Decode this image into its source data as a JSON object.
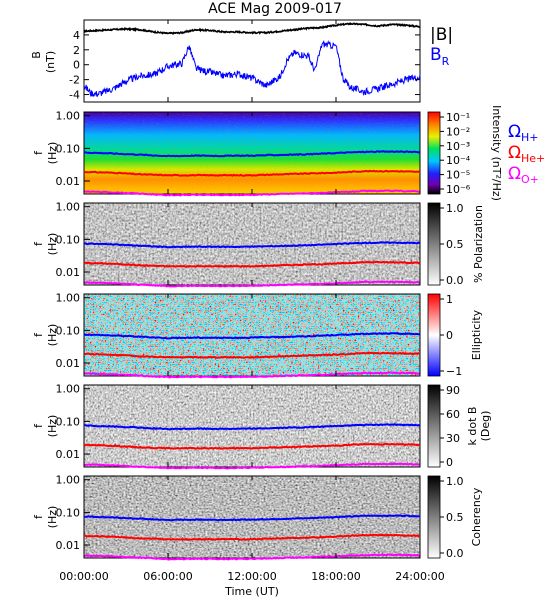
{
  "title": "ACE Mag 2009-017",
  "chart_data": [
    {
      "type": "line",
      "panel": "magnetic-field",
      "ylabel_line1": "B",
      "ylabel_line2": "(nT)",
      "ylim": [
        -5,
        6
      ],
      "yticks": [
        4,
        2,
        0,
        -2,
        -4
      ],
      "xlim": [
        0,
        24
      ],
      "series": [
        {
          "name": "|B|",
          "color": "#000000",
          "x": [
            0,
            1,
            2,
            3,
            4,
            5,
            6,
            7,
            8,
            9,
            10,
            11,
            12,
            13,
            14,
            15,
            16,
            17,
            18,
            19,
            20,
            21,
            22,
            23,
            24
          ],
          "y": [
            4.5,
            4.6,
            4.7,
            4.8,
            4.7,
            4.4,
            4.2,
            4.3,
            4.7,
            4.6,
            4.4,
            4.4,
            4.3,
            4.3,
            4.5,
            4.7,
            4.9,
            5.0,
            5.3,
            5.5,
            5.4,
            5.2,
            5.4,
            5.3,
            5.1
          ]
        },
        {
          "name": "B_R",
          "color": "#0000ff",
          "x": [
            0,
            0.5,
            1,
            2,
            3,
            4,
            5,
            6,
            7,
            7.5,
            8,
            8.5,
            9,
            10,
            11,
            12,
            13,
            14,
            14.5,
            15,
            16,
            16.5,
            17,
            18,
            18.5,
            19,
            20,
            21,
            22,
            23,
            24
          ],
          "y": [
            -2.8,
            -3.8,
            -3.9,
            -3.3,
            -2.2,
            -1.5,
            -1.3,
            -0.2,
            0.2,
            2.5,
            -0.5,
            -0.8,
            -1.0,
            -1.5,
            -1.2,
            -1.8,
            -2.8,
            -1.6,
            0.6,
            1.6,
            1.2,
            -0.8,
            2.8,
            2.5,
            -1.8,
            -3.0,
            -3.6,
            -3.2,
            -2.6,
            -2.0,
            -1.6
          ]
        }
      ],
      "legend": [
        {
          "label": "|B|",
          "color": "#000000"
        },
        {
          "label": "B",
          "sub": "R",
          "color": "#0000ff"
        }
      ]
    },
    {
      "type": "heatmap",
      "panel": "intensity",
      "colormap": "rainbow",
      "colorbar_label": "Intensity (nT²/Hz)",
      "colorbar_ticks": [
        "10⁻¹",
        "10⁻²",
        "10⁻³",
        "10⁻⁴",
        "10⁻⁵",
        "10⁻⁶"
      ]
    },
    {
      "type": "heatmap",
      "panel": "polarization",
      "colormap": "grayscale",
      "colorbar_label": "% Polarization",
      "colorbar_ticks": [
        "1.0",
        "0.5",
        "0.0"
      ]
    },
    {
      "type": "heatmap",
      "panel": "ellipticity",
      "colormap": "blue-white-red",
      "colorbar_label": "Ellipticity",
      "colorbar_ticks": [
        "1",
        "0",
        "−1"
      ]
    },
    {
      "type": "heatmap",
      "panel": "k-dot-b",
      "colormap": "grayscale",
      "colorbar_label_line1": "k dot B",
      "colorbar_label_line2": "(Deg)",
      "colorbar_ticks": [
        "90",
        "60",
        "30",
        "0"
      ]
    },
    {
      "type": "heatmap",
      "panel": "coherency",
      "colormap": "grayscale",
      "colorbar_label": "Coherency",
      "colorbar_ticks": [
        "1.0",
        "0.5",
        "0.0"
      ]
    }
  ],
  "spectrogram_axes": {
    "ylabel_line1": "f",
    "ylabel_line2": "(Hz)",
    "yscale": "log",
    "ylim": [
      0.004,
      1.3
    ],
    "yticks": [
      {
        "value": 1.0,
        "label": "1.00"
      },
      {
        "value": 0.1,
        "label": "0.10"
      },
      {
        "value": 0.01,
        "label": "0.01"
      }
    ]
  },
  "gyro_lines": {
    "x": [
      0,
      2,
      4,
      6,
      8,
      10,
      12,
      14,
      16,
      18,
      20,
      22,
      24
    ],
    "H+": {
      "color": "#0000ff",
      "f": [
        0.075,
        0.07,
        0.064,
        0.058,
        0.06,
        0.059,
        0.06,
        0.063,
        0.066,
        0.072,
        0.078,
        0.08,
        0.077
      ]
    },
    "He+": {
      "color": "#ff0000",
      "f": [
        0.019,
        0.018,
        0.016,
        0.015,
        0.015,
        0.015,
        0.015,
        0.016,
        0.017,
        0.018,
        0.02,
        0.02,
        0.019
      ]
    },
    "O+": {
      "color": "#ff00ff",
      "f": [
        0.0048,
        0.0045,
        0.0041,
        0.0037,
        0.0038,
        0.0037,
        0.0038,
        0.004,
        0.0042,
        0.0045,
        0.0049,
        0.005,
        0.0048
      ]
    }
  },
  "gyro_legend": [
    {
      "symbol": "Ω",
      "sub": "H+",
      "color": "#0000ff"
    },
    {
      "symbol": "Ω",
      "sub": "He+",
      "color": "#ff0000"
    },
    {
      "symbol": "Ω",
      "sub": "O+",
      "color": "#ff00ff"
    }
  ],
  "x_axis": {
    "label": "Time (UT)",
    "ticks": [
      {
        "value": 0,
        "label": "00:00:00"
      },
      {
        "value": 6,
        "label": "06:00:00"
      },
      {
        "value": 12,
        "label": "12:00:00"
      },
      {
        "value": 18,
        "label": "18:00:00"
      },
      {
        "value": 24,
        "label": "24:00:00"
      }
    ]
  }
}
